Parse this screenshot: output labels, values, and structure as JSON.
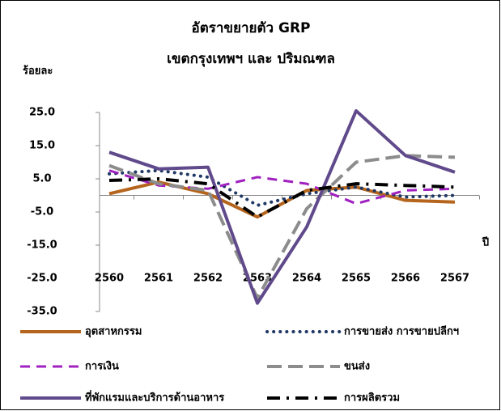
{
  "chart_data": {
    "type": "line",
    "title": "อัตราขยายตัว GRP",
    "subtitle": "เขตกรุงเทพฯ และ ปริมณฑล",
    "y_label": "ร้อยละ",
    "x_label": "ปี",
    "categories": [
      "2560",
      "2561",
      "2562",
      "2563",
      "2564",
      "2565",
      "2566",
      "2567"
    ],
    "ylim": [
      -35,
      25
    ],
    "yticks": [
      {
        "value": 25,
        "label": "25.0"
      },
      {
        "value": 15,
        "label": "15.0"
      },
      {
        "value": 5,
        "label": "5.0"
      },
      {
        "value": -5,
        "label": "-5.0"
      },
      {
        "value": -15,
        "label": "-15.0"
      },
      {
        "value": -25,
        "label": "-25.0"
      },
      {
        "value": -35,
        "label": "-35.0"
      }
    ],
    "series": [
      {
        "name": "อุตสาหกรรม",
        "color": "#b5651d",
        "style": "solid",
        "values": [
          0.5,
          4,
          0.5,
          -6.5,
          1.5,
          2.5,
          -1.5,
          -2
        ]
      },
      {
        "name": "การขายส่ง การขายปลีกฯ",
        "color": "#1f3864",
        "style": "dotted",
        "values": [
          6.5,
          7.5,
          5.5,
          -3,
          0.5,
          2.5,
          -0.5,
          0
        ]
      },
      {
        "name": "การเงิน",
        "color": "#a020c0",
        "style": "dashed",
        "values": [
          7.5,
          3,
          2,
          5.5,
          3.5,
          -2.5,
          1.5,
          2
        ]
      },
      {
        "name": "ขนส่ง",
        "color": "#8c8c8c",
        "style": "longdash",
        "values": [
          9,
          3.5,
          1.5,
          -31,
          -4,
          10,
          12,
          11.5
        ]
      },
      {
        "name": "ที่พักแรมและบริการด้านอาหาร",
        "color": "#604a8b",
        "style": "solid",
        "values": [
          13,
          8,
          8.5,
          -32.5,
          -9.5,
          25.5,
          12,
          7
        ]
      },
      {
        "name": "การผลิตรวม",
        "color": "#000000",
        "style": "dashdot",
        "values": [
          4.5,
          5,
          3.5,
          -6.5,
          1.5,
          3.5,
          3,
          2.5
        ]
      }
    ]
  }
}
